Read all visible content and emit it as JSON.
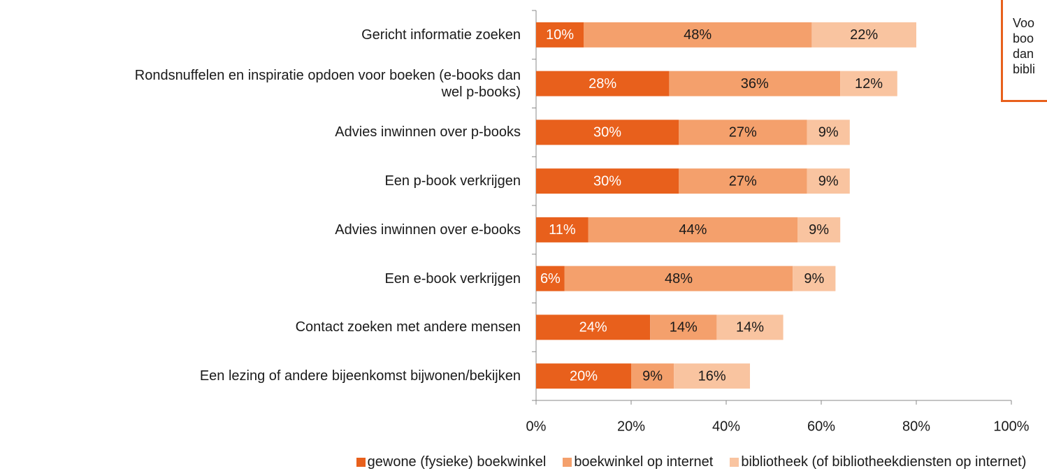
{
  "chart_data": {
    "type": "stacked-bar-horizontal",
    "categories": [
      "Gericht informatie zoeken",
      "Rondsnuffelen en inspiratie opdoen voor boeken (e-books dan\nwel p-books)",
      "Advies inwinnen over p-books",
      "Een p-book verkrijgen",
      "Advies inwinnen over e-books",
      "Een e-book verkrijgen",
      "Contact zoeken met andere mensen",
      "Een lezing of andere bijeenkomst bijwonen/bekijken"
    ],
    "series": [
      {
        "name": "gewone (fysieke) boekwinkel",
        "color": "#e8601c",
        "label_color": "#ffffff",
        "values": [
          10,
          28,
          30,
          30,
          11,
          6,
          24,
          20
        ],
        "value_labels": [
          "10%",
          "28%",
          "30%",
          "30%",
          "11%",
          "6%",
          "24%",
          "20%"
        ]
      },
      {
        "name": "boekwinkel op internet",
        "color": "#f4a06c",
        "label_color": "#1a1a1a",
        "values": [
          48,
          36,
          27,
          27,
          44,
          48,
          14,
          9
        ],
        "value_labels": [
          "48%",
          "36%",
          "27%",
          "27%",
          "44%",
          "48%",
          "14%",
          "9%"
        ]
      },
      {
        "name": "bibliotheek (of bibliotheekdiensten op internet)",
        "color": "#f9c4a0",
        "label_color": "#1a1a1a",
        "values": [
          22,
          12,
          9,
          9,
          9,
          9,
          14,
          16
        ],
        "value_labels": [
          "22%",
          "12%",
          "9%",
          "9%",
          "9%",
          "9%",
          "14%",
          "16%"
        ]
      }
    ],
    "xlim": [
      0,
      100
    ],
    "xticks": [
      {
        "value": 0,
        "label": "0%"
      },
      {
        "value": 20,
        "label": "20%"
      },
      {
        "value": 40,
        "label": "40%"
      },
      {
        "value": 60,
        "label": "60%"
      },
      {
        "value": 80,
        "label": "80%"
      },
      {
        "value": 100,
        "label": "100%"
      }
    ],
    "grid": false,
    "legend": "bottom",
    "annotation": [
      "Voo",
      "boo",
      "dan",
      "bibli"
    ]
  }
}
